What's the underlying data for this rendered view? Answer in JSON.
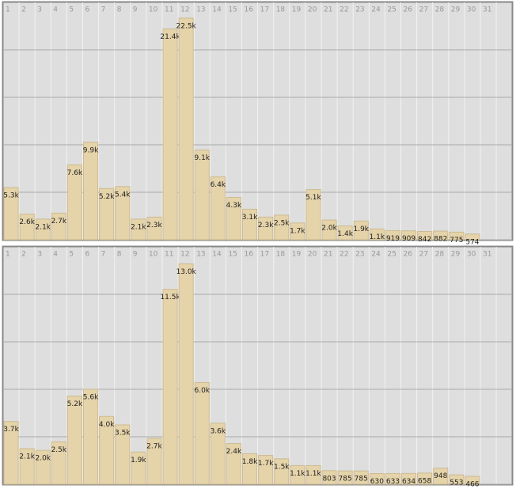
{
  "chart_data": [
    {
      "type": "bar",
      "categories": [
        "1",
        "2",
        "3",
        "4",
        "5",
        "6",
        "7",
        "8",
        "9",
        "10",
        "11",
        "12",
        "13",
        "14",
        "15",
        "16",
        "17",
        "18",
        "19",
        "20",
        "21",
        "22",
        "23",
        "24",
        "25",
        "26",
        "27",
        "28",
        "29",
        "30",
        "31"
      ],
      "values": [
        5300,
        2600,
        2100,
        2700,
        7600,
        9900,
        5200,
        5400,
        2100,
        2300,
        21400,
        22500,
        9100,
        6400,
        4300,
        3100,
        2300,
        2500,
        1700,
        5100,
        2000,
        1400,
        1900,
        1100,
        919,
        909,
        842,
        882,
        775,
        574,
        null
      ],
      "value_labels": [
        "5.3k",
        "2.6k",
        "2.1k",
        "2.7k",
        "7.6k",
        "9.9k",
        "5.2k",
        "5.4k",
        "2.1k",
        "2.3k",
        "21.4k",
        "22.5k",
        "9.1k",
        "6.4k",
        "4.3k",
        "3.1k",
        "2.3k",
        "2.5k",
        "1.7k",
        "5.1k",
        "2.0k",
        "1.4k",
        "1.9k",
        "1.1k",
        "919",
        "909",
        "842",
        "882",
        "775",
        "574",
        null
      ],
      "color": "#e5d3a9",
      "ylim": [
        0,
        24100
      ],
      "yticks": [
        0,
        4820,
        9640,
        14460,
        19280
      ],
      "grid": true
    },
    {
      "type": "bar",
      "categories": [
        "1",
        "2",
        "3",
        "4",
        "5",
        "6",
        "7",
        "8",
        "9",
        "10",
        "11",
        "12",
        "13",
        "14",
        "15",
        "16",
        "17",
        "18",
        "19",
        "20",
        "21",
        "22",
        "23",
        "24",
        "25",
        "26",
        "27",
        "28",
        "29",
        "30",
        "31"
      ],
      "values": [
        3700,
        2100,
        2000,
        2500,
        5200,
        5600,
        4000,
        3500,
        1900,
        2700,
        11500,
        13000,
        6000,
        3600,
        2400,
        1800,
        1700,
        1500,
        1100,
        1100,
        803,
        785,
        785,
        630,
        633,
        634,
        658,
        948,
        553,
        466,
        null
      ],
      "value_labels": [
        "3.7k",
        "2.1k",
        "2.0k",
        "2.5k",
        "5.2k",
        "5.6k",
        "4.0k",
        "3.5k",
        "1.9k",
        "2.7k",
        "11.5k",
        "13.0k",
        "6.0k",
        "3.6k",
        "2.4k",
        "1.8k",
        "1.7k",
        "1.5k",
        "1.1k",
        "1.1k",
        "803",
        "785",
        "785",
        "630",
        "633",
        "634",
        "658",
        "948",
        "553",
        "466",
        null
      ],
      "color": "#e5d3a9",
      "ylim": [
        0,
        14000
      ],
      "yticks": [
        0,
        2800,
        5600,
        8400,
        11200
      ],
      "grid": true
    }
  ]
}
